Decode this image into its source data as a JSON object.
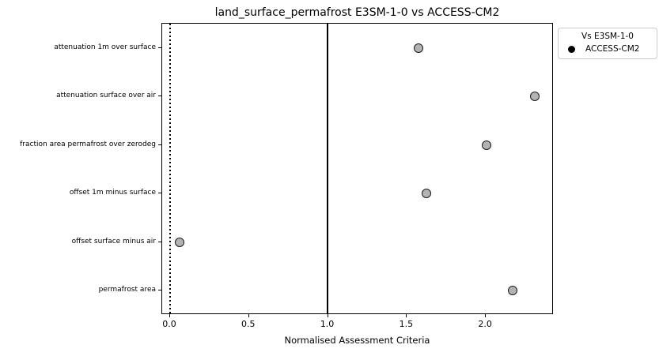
{
  "title": "land_surface_permafrost E3SM-1-0 vs ACCESS-CM2",
  "legend": {
    "title": "Vs E3SM-1-0",
    "entries": [
      {
        "label": "ACCESS-CM2",
        "marker_color": "#000000"
      }
    ]
  },
  "chart_data": {
    "type": "scatter",
    "orientation": "horizontal-categorical",
    "title": "land_surface_permafrost E3SM-1-0 vs ACCESS-CM2",
    "xlabel": "Normalised Assessment Criteria",
    "ylabel": "",
    "categories": [
      "attenuation 1m over surface",
      "attenuation surface over air",
      "fraction area permafrost over zerodeg",
      "offset 1m minus surface",
      "offset surface minus air",
      "permafrost area"
    ],
    "series": [
      {
        "name": "ACCESS-CM2",
        "values": [
          1.58,
          2.32,
          2.01,
          1.63,
          0.06,
          2.18
        ]
      }
    ],
    "xlim": [
      -0.05,
      2.43
    ],
    "xticks": [
      0.0,
      0.5,
      1.0,
      1.5,
      2.0
    ],
    "xtick_labels": [
      "0.0",
      "0.5",
      "1.0",
      "1.5",
      "2.0"
    ],
    "reference_lines": [
      {
        "x": 0.0,
        "style": "dotted",
        "color": "#000000"
      },
      {
        "x": 1.0,
        "style": "solid",
        "color": "#000000"
      }
    ],
    "marker": {
      "fill": "#b3b3b3",
      "edge": "#1a1a1a"
    },
    "grid": false,
    "legend_position": "upper-right-outside"
  }
}
